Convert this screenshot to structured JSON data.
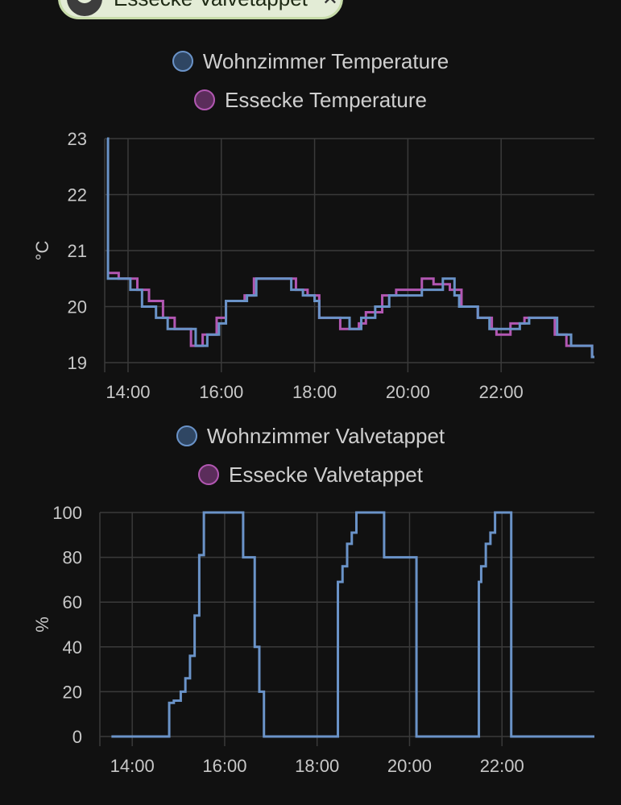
{
  "header_chip": {
    "label": "Essecke Valvetappet",
    "close_symbol": "✕",
    "icon": "person-avatar-icon"
  },
  "colors": {
    "background": "#111111",
    "grid": "#3a3a3a",
    "series_blue": "#6a93c8",
    "series_purple": "#b257b2",
    "text": "#c8c8c8"
  },
  "chart_data": [
    {
      "type": "line",
      "step": true,
      "title": "",
      "xlabel": "",
      "ylabel": "°C",
      "xlim": [
        13.5,
        24.0
      ],
      "ylim": [
        19,
        23
      ],
      "yticks": [
        19,
        20,
        21,
        22,
        23
      ],
      "xticks": [
        14,
        16,
        18,
        20,
        22
      ],
      "xtick_labels": [
        "14:00",
        "16:00",
        "18:00",
        "20:00",
        "22:00"
      ],
      "grid": true,
      "legend_position": "top-center",
      "series": [
        {
          "name": "Wohnzimmer Temperature",
          "color": "#6a93c8",
          "x": [
            13.55,
            13.57,
            14.05,
            14.3,
            14.6,
            14.85,
            15.2,
            15.45,
            15.7,
            15.95,
            16.1,
            16.3,
            16.55,
            16.75,
            17.1,
            17.5,
            17.75,
            18.0,
            18.1,
            18.5,
            18.75,
            19.0,
            19.3,
            19.6,
            20.1,
            20.3,
            20.75,
            21.0,
            21.1,
            21.5,
            21.75,
            22.0,
            22.4,
            22.6,
            23.0,
            23.2,
            23.5,
            23.75,
            23.95
          ],
          "y": [
            23.0,
            20.5,
            20.3,
            20.0,
            19.8,
            19.6,
            19.6,
            19.3,
            19.5,
            19.7,
            20.1,
            20.1,
            20.2,
            20.5,
            20.5,
            20.3,
            20.2,
            20.1,
            19.8,
            19.8,
            19.6,
            19.8,
            20.0,
            20.2,
            20.2,
            20.3,
            20.5,
            20.2,
            20.0,
            19.8,
            19.6,
            19.6,
            19.7,
            19.8,
            19.8,
            19.5,
            19.3,
            19.3,
            19.1
          ]
        },
        {
          "name": "Essecke Temperature",
          "color": "#b257b2",
          "x": [
            13.55,
            13.8,
            14.2,
            14.45,
            14.75,
            15.0,
            15.35,
            15.6,
            15.9,
            16.1,
            16.5,
            16.7,
            17.15,
            17.6,
            17.85,
            18.1,
            18.55,
            18.95,
            19.1,
            19.45,
            19.75,
            20.0,
            20.3,
            20.55,
            20.9,
            21.15,
            21.5,
            21.8,
            21.9,
            22.2,
            22.5,
            22.8,
            23.15,
            23.4,
            23.6,
            23.95
          ],
          "y": [
            20.6,
            20.5,
            20.3,
            20.1,
            19.8,
            19.6,
            19.3,
            19.5,
            19.8,
            20.1,
            20.2,
            20.5,
            20.5,
            20.3,
            20.2,
            19.8,
            19.6,
            19.7,
            19.9,
            20.2,
            20.3,
            20.3,
            20.5,
            20.4,
            20.3,
            20.0,
            19.8,
            19.6,
            19.5,
            19.7,
            19.8,
            19.8,
            19.5,
            19.3,
            19.3,
            19.1
          ]
        }
      ]
    },
    {
      "type": "line",
      "step": true,
      "title": "",
      "xlabel": "",
      "ylabel": "%",
      "xlim": [
        13.3,
        24.0
      ],
      "ylim": [
        0,
        100
      ],
      "yticks": [
        0,
        20,
        40,
        60,
        80,
        100
      ],
      "xticks": [
        14,
        16,
        18,
        20,
        22
      ],
      "xtick_labels": [
        "14:00",
        "16:00",
        "18:00",
        "20:00",
        "22:00"
      ],
      "grid": true,
      "legend_position": "top-center",
      "series": [
        {
          "name": "Wohnzimmer Valvetappet",
          "color": "#6a93c8",
          "x": [
            13.55,
            14.8,
            14.9,
            15.05,
            15.15,
            15.25,
            15.35,
            15.45,
            15.55,
            16.0,
            16.4,
            16.65,
            16.75,
            16.85,
            17.4,
            18.0,
            18.45,
            18.55,
            18.65,
            18.75,
            18.85,
            19.0,
            19.45,
            19.65,
            20.0,
            20.15,
            21.0,
            21.5,
            21.55,
            21.65,
            21.75,
            21.85,
            22.0,
            22.2,
            23.0,
            23.95
          ],
          "y": [
            0,
            15,
            16,
            20,
            26,
            36,
            54,
            81,
            100,
            100,
            80,
            40,
            20,
            0,
            0,
            0,
            69,
            76,
            86,
            91,
            100,
            100,
            80,
            80,
            80,
            0,
            0,
            69,
            76,
            86,
            91,
            100,
            100,
            0,
            0,
            0
          ]
        },
        {
          "name": "Essecke Valvetappet",
          "color": "#b257b2",
          "x": [],
          "y": []
        }
      ]
    }
  ]
}
